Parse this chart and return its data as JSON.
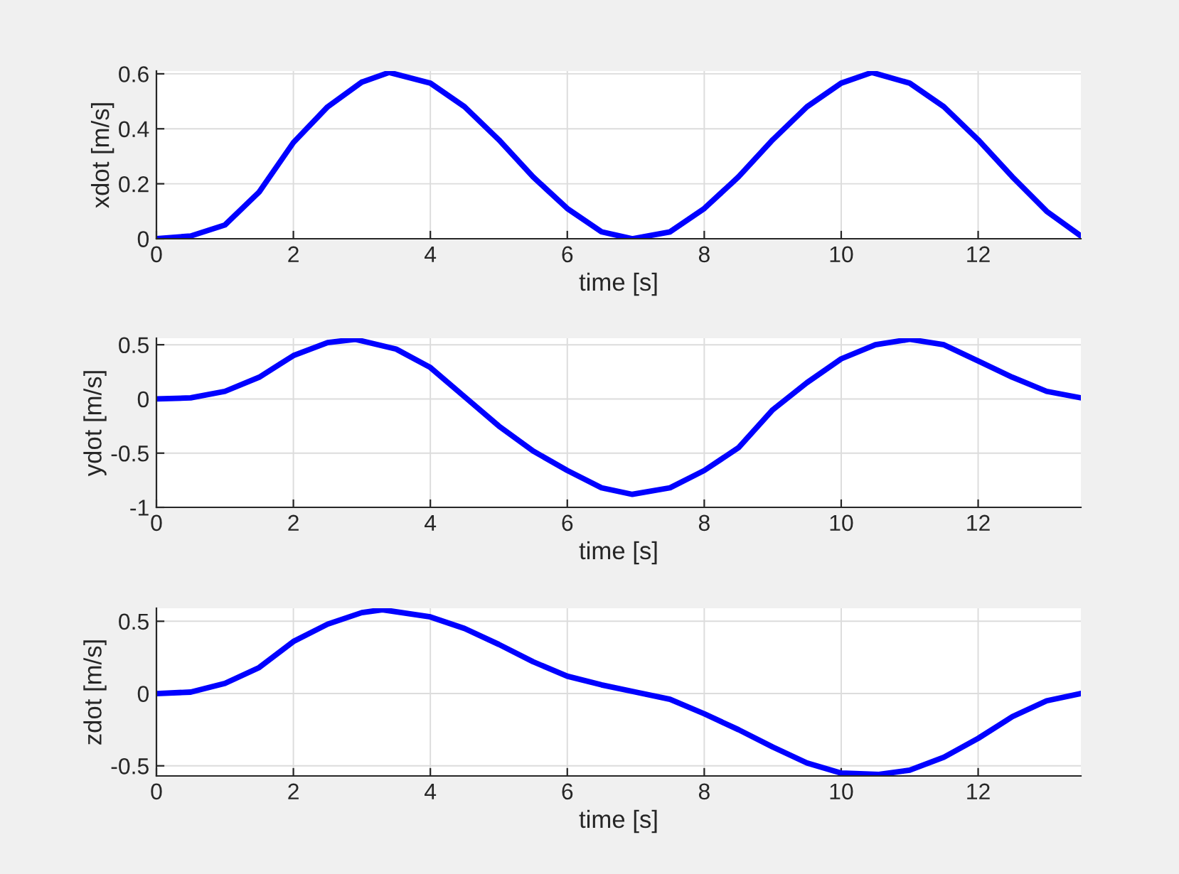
{
  "chart_data": [
    {
      "type": "line",
      "xlabel": "time [s]",
      "ylabel": "xdot [m/s]",
      "xlim": [
        0,
        13.5
      ],
      "xticks": [
        0,
        2,
        4,
        6,
        8,
        10,
        12
      ],
      "ylim": [
        0,
        0.61
      ],
      "yticks": [
        0,
        0.2,
        0.4,
        0.6
      ],
      "grid": true,
      "legend": false,
      "line_style": "solid",
      "marker": "none",
      "x": [
        0,
        0.5,
        1,
        1.5,
        2,
        2.5,
        3,
        3.4,
        4,
        4.5,
        5,
        5.5,
        6,
        6.5,
        6.95,
        7.5,
        8,
        8.5,
        9,
        9.5,
        10,
        10.45,
        11,
        11.5,
        12,
        12.5,
        13,
        13.5
      ],
      "series": [
        {
          "color": "#0000ff",
          "values": [
            0,
            0.01,
            0.05,
            0.17,
            0.35,
            0.48,
            0.57,
            0.605,
            0.566,
            0.48,
            0.36,
            0.225,
            0.11,
            0.025,
            0,
            0.025,
            0.11,
            0.225,
            0.36,
            0.48,
            0.566,
            0.605,
            0.566,
            0.48,
            0.36,
            0.225,
            0.1,
            0.01
          ]
        }
      ]
    },
    {
      "type": "line",
      "xlabel": "time [s]",
      "ylabel": "ydot [m/s]",
      "xlim": [
        0,
        13.5
      ],
      "xticks": [
        0,
        2,
        4,
        6,
        8,
        10,
        12
      ],
      "ylim": [
        -1,
        0.56
      ],
      "yticks": [
        -1,
        -0.5,
        0,
        0.5
      ],
      "grid": true,
      "legend": false,
      "line_style": "solid",
      "marker": "none",
      "x": [
        0,
        0.5,
        1,
        1.5,
        2,
        2.5,
        2.9,
        3.5,
        4,
        4.5,
        5,
        5.5,
        6,
        6.5,
        6.95,
        7.5,
        8,
        8.5,
        9,
        9.5,
        10,
        10.5,
        11,
        11.5,
        12,
        12.5,
        13,
        13.5
      ],
      "series": [
        {
          "color": "#0000ff",
          "values": [
            0,
            0.01,
            0.07,
            0.2,
            0.4,
            0.52,
            0.55,
            0.46,
            0.29,
            0.02,
            -0.25,
            -0.48,
            -0.66,
            -0.82,
            -0.88,
            -0.82,
            -0.66,
            -0.45,
            -0.1,
            0.15,
            0.37,
            0.5,
            0.55,
            0.5,
            0.35,
            0.2,
            0.07,
            0.01
          ]
        }
      ]
    },
    {
      "type": "line",
      "xlabel": "time [s]",
      "ylabel": "zdot [m/s]",
      "xlim": [
        0,
        13.5
      ],
      "xticks": [
        0,
        2,
        4,
        6,
        8,
        10,
        12
      ],
      "ylim": [
        -0.57,
        0.59
      ],
      "yticks": [
        -0.5,
        0,
        0.5
      ],
      "grid": true,
      "legend": false,
      "line_style": "solid",
      "marker": "none",
      "x": [
        0,
        0.5,
        1,
        1.5,
        2,
        2.5,
        3,
        3.3,
        4,
        4.5,
        5,
        5.5,
        6,
        6.5,
        7,
        7.5,
        8,
        8.5,
        9,
        9.5,
        10,
        10.55,
        11,
        11.5,
        12,
        12.5,
        13,
        13.5
      ],
      "series": [
        {
          "color": "#0000ff",
          "values": [
            0,
            0.01,
            0.07,
            0.18,
            0.36,
            0.48,
            0.56,
            0.58,
            0.53,
            0.45,
            0.34,
            0.22,
            0.12,
            0.06,
            0.01,
            -0.04,
            -0.14,
            -0.25,
            -0.37,
            -0.48,
            -0.55,
            -0.56,
            -0.53,
            -0.44,
            -0.31,
            -0.16,
            -0.05,
            0
          ]
        }
      ]
    }
  ]
}
